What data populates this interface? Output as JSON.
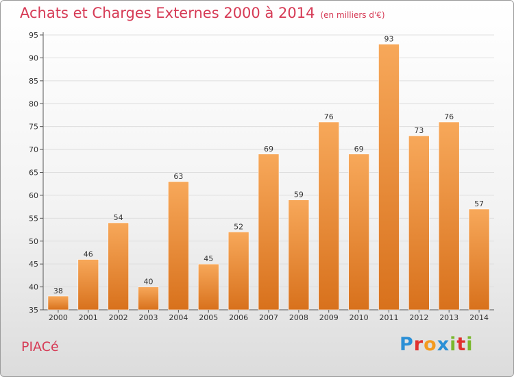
{
  "header": {
    "title": "Achats et Charges Externes 2000 à 2014",
    "subtitle": "(en milliers d'€)"
  },
  "footer": {
    "place": "PIACé",
    "logo": "Proxiti"
  },
  "colors": {
    "title": "#d63a55",
    "bar_light": "#f7a85a",
    "bar_dark": "#d8711c",
    "logo_letters": [
      "#2a8fd6",
      "#e0312f",
      "#f39a1f",
      "#2a8fd6",
      "#79b82c",
      "#e0312f",
      "#79b82c"
    ]
  },
  "chart_data": {
    "type": "bar",
    "title": "Achats et Charges Externes 2000 à 2014",
    "subtitle": "(en milliers d'€)",
    "categories": [
      "2000",
      "2001",
      "2002",
      "2003",
      "2004",
      "2005",
      "2006",
      "2007",
      "2008",
      "2009",
      "2010",
      "2011",
      "2012",
      "2013",
      "2014"
    ],
    "values": [
      38,
      46,
      54,
      40,
      63,
      45,
      52,
      69,
      59,
      76,
      69,
      93,
      73,
      76,
      57
    ],
    "ylim": [
      35,
      95
    ],
    "yticks": [
      35,
      40,
      45,
      50,
      55,
      60,
      65,
      70,
      75,
      80,
      85,
      90,
      95
    ],
    "grid": true,
    "data_labels": true
  }
}
